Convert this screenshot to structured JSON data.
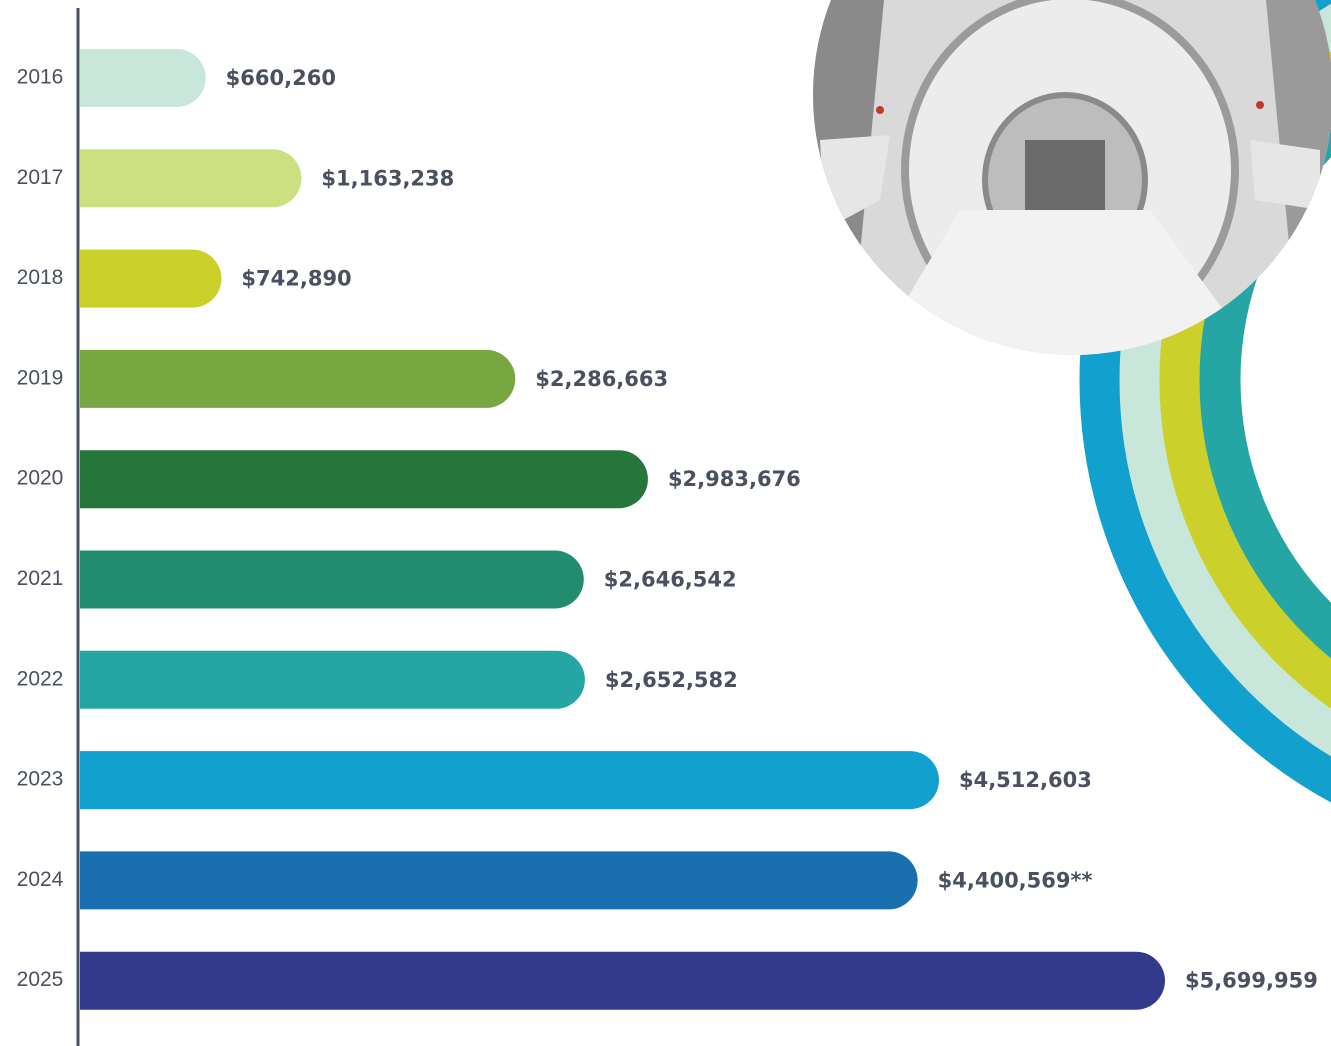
{
  "chart_data": {
    "type": "bar",
    "orientation": "horizontal",
    "categories": [
      "2016",
      "2017",
      "2018",
      "2019",
      "2020",
      "2021",
      "2022",
      "2023",
      "2024",
      "2025"
    ],
    "values": [
      660260,
      1163238,
      742890,
      2286663,
      2983676,
      2646542,
      2652582,
      4512603,
      4400569,
      5699959
    ],
    "value_labels": [
      "$660,260",
      "$1,163,238",
      "$742,890",
      "$2,286,663",
      "$2,983,676",
      "$2,646,542",
      "$2,652,582",
      "$4,512,603",
      "$4,400,569**",
      "$5,699,959"
    ],
    "colors": [
      "#c8e6d9",
      "#cde081",
      "#ccd02a",
      "#78a641",
      "#26753b",
      "#248c6e",
      "#25a6a4",
      "#12a0cf",
      "#1a6fb0",
      "#323a8c"
    ],
    "xlim": [
      0,
      5700000
    ]
  }
}
